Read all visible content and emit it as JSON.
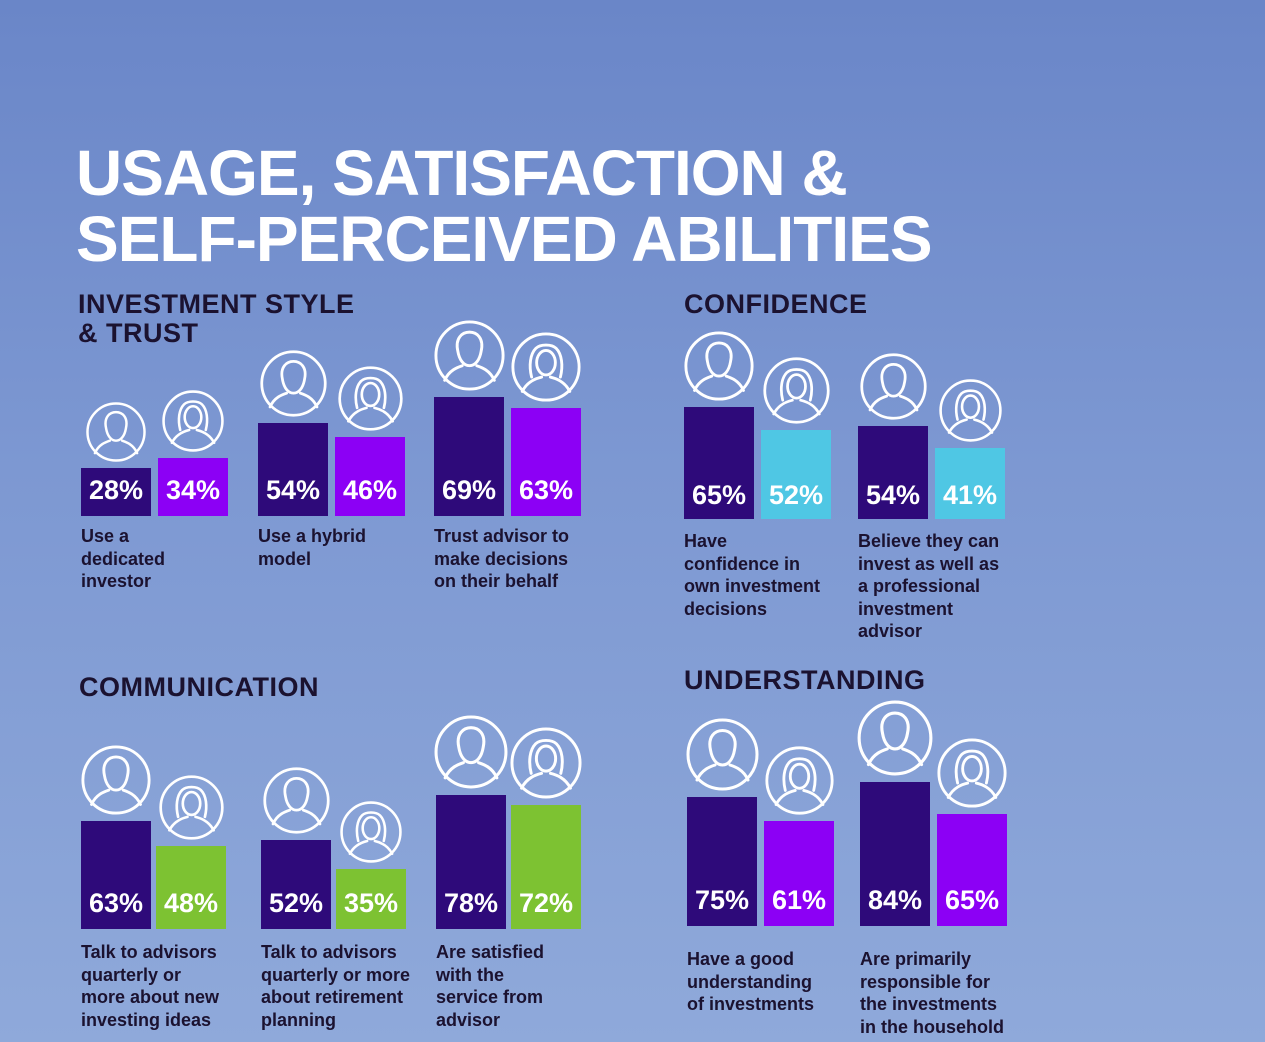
{
  "title_lines": [
    "USAGE, SATISFACTION &",
    "SELF-PERCEIVED ABILITIES"
  ],
  "colors": {
    "men": "#2e0a7a",
    "women_purple": "#8c00f5",
    "women_cyan": "#4fc7e4",
    "women_green": "#7dc232",
    "text_dark": "#1b1230",
    "icon_stroke": "#ffffff"
  },
  "sections": {
    "investment": {
      "title_lines": [
        "INVESTMENT STYLE",
        "& TRUST"
      ]
    },
    "confidence": {
      "title_lines": [
        "CONFIDENCE"
      ]
    },
    "communication": {
      "title_lines": [
        "COMMUNICATION"
      ]
    },
    "understanding": {
      "title_lines": [
        "UNDERSTANDING"
      ]
    }
  },
  "chart_data": [
    {
      "type": "bar",
      "section": "INVESTMENT STYLE & TRUST",
      "series": [
        {
          "icon": "man-icon",
          "color": "#2e0a7a"
        },
        {
          "icon": "woman-icon",
          "color": "#8c00f5"
        }
      ],
      "groups": [
        {
          "values": [
            28,
            34
          ],
          "labels": [
            "28%",
            "34%"
          ],
          "desc_lines": [
            "Use a",
            "dedicated",
            "investor"
          ]
        },
        {
          "values": [
            54,
            46
          ],
          "labels": [
            "54%",
            "46%"
          ],
          "desc_lines": [
            "Use a hybrid",
            "model"
          ]
        },
        {
          "values": [
            69,
            63
          ],
          "labels": [
            "69%",
            "63%"
          ],
          "desc_lines": [
            "Trust advisor to",
            "make decisions",
            "on their behalf"
          ]
        }
      ]
    },
    {
      "type": "bar",
      "section": "CONFIDENCE",
      "series": [
        {
          "icon": "man-icon",
          "color": "#2e0a7a"
        },
        {
          "icon": "woman-icon",
          "color": "#4fc7e4"
        }
      ],
      "groups": [
        {
          "values": [
            65,
            52
          ],
          "labels": [
            "65%",
            "52%"
          ],
          "desc_lines": [
            "Have",
            "confidence in",
            "own investment",
            "decisions"
          ]
        },
        {
          "values": [
            54,
            41
          ],
          "labels": [
            "54%",
            "41%"
          ],
          "desc_lines": [
            "Believe they can",
            "invest as well as",
            "a professional",
            "investment",
            "advisor"
          ]
        }
      ]
    },
    {
      "type": "bar",
      "section": "COMMUNICATION",
      "series": [
        {
          "icon": "man-icon",
          "color": "#2e0a7a"
        },
        {
          "icon": "woman-icon",
          "color": "#7dc232"
        }
      ],
      "groups": [
        {
          "values": [
            63,
            48
          ],
          "labels": [
            "63%",
            "48%"
          ],
          "desc_lines": [
            "Talk to advisors",
            "quarterly or",
            "more about new",
            "investing ideas"
          ]
        },
        {
          "values": [
            52,
            35
          ],
          "labels": [
            "52%",
            "35%"
          ],
          "desc_lines": [
            "Talk to advisors",
            "quarterly or more",
            "about retirement",
            "planning"
          ]
        },
        {
          "values": [
            78,
            72
          ],
          "labels": [
            "78%",
            "72%"
          ],
          "desc_lines": [
            "Are satisfied",
            "with the",
            "service from",
            "advisor"
          ]
        }
      ]
    },
    {
      "type": "bar",
      "section": "UNDERSTANDING",
      "series": [
        {
          "icon": "man-icon",
          "color": "#2e0a7a"
        },
        {
          "icon": "woman-icon",
          "color": "#8c00f5"
        }
      ],
      "groups": [
        {
          "values": [
            75,
            61
          ],
          "labels": [
            "75%",
            "61%"
          ],
          "desc_lines": [
            "Have a good",
            "understanding",
            "of investments"
          ]
        },
        {
          "values": [
            84,
            65
          ],
          "labels": [
            "84%",
            "65%"
          ],
          "desc_lines": [
            "Are primarily",
            "responsible for",
            "the investments",
            "in the household"
          ]
        }
      ]
    }
  ]
}
